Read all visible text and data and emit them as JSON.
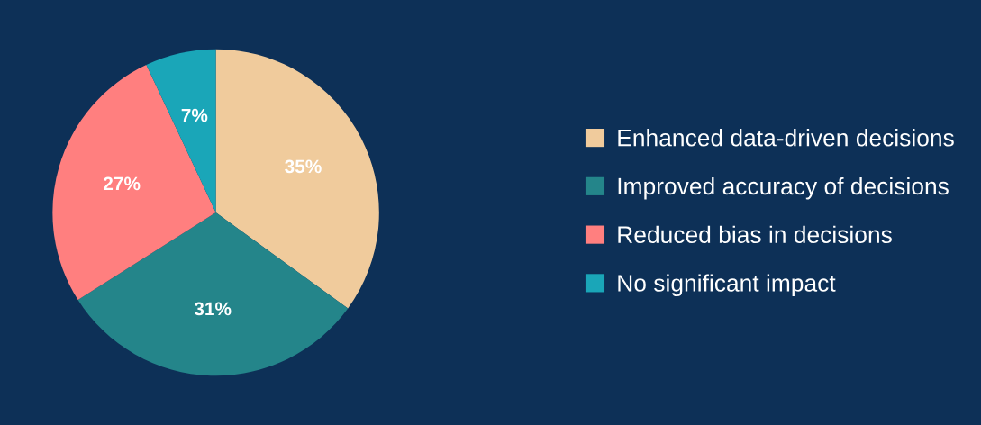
{
  "chart_data": {
    "type": "pie",
    "categories": [
      "Enhanced data-driven decisions",
      "Improved accuracy of decisions",
      "Reduced bias in decisions",
      "No significant impact"
    ],
    "values": [
      35,
      31,
      27,
      7
    ],
    "value_labels": [
      "35%",
      "31%",
      "27%",
      "7%"
    ],
    "colors": [
      "#f0cb9c",
      "#24858a",
      "#ff7f7f",
      "#1aa6b8"
    ],
    "legend": "right"
  }
}
